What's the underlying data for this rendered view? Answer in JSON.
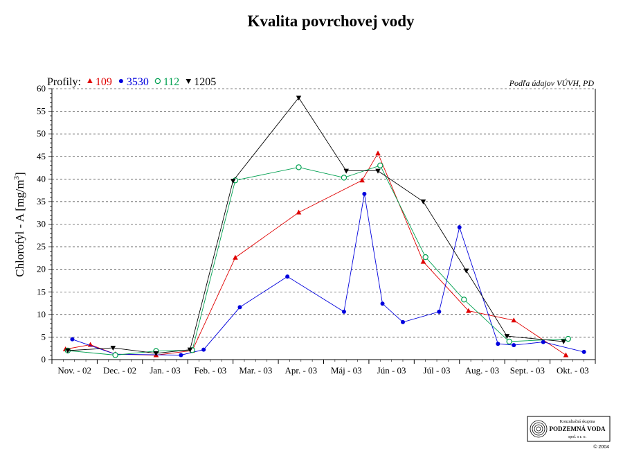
{
  "chart_data": {
    "type": "line",
    "title": "Kvalita povrchovej vody",
    "ylabel_main": "Chlorofyl - A [mg/m",
    "ylabel_sup": "3",
    "ylabel_end": "]",
    "source_note": "Podľa údajov VÚVH, PD",
    "legend_prefix": "Profily:",
    "ylim": [
      0,
      60
    ],
    "yticks": [
      "0",
      "5",
      "10",
      "15",
      "20",
      "25",
      "30",
      "35",
      "40",
      "45",
      "50",
      "55",
      "60"
    ],
    "ytick_values": [
      0,
      5,
      10,
      15,
      20,
      25,
      30,
      35,
      40,
      45,
      50,
      55,
      60
    ],
    "xlim": [
      0,
      12
    ],
    "month_labels": [
      "Nov. - 02",
      "Dec. - 02",
      "Jan. - 03",
      "Feb. - 03",
      "Mar. - 03",
      "Apr. - 03",
      "Máj - 03",
      "Jún - 03",
      "Júl - 03",
      "Aug. - 03",
      "Sept. - 03",
      "Okt. - 03"
    ],
    "grid": "horizontal-dashed",
    "series": [
      {
        "name": "109",
        "color": "#e00000",
        "marker": "triangle-up",
        "points": [
          [
            0.3,
            2.3
          ],
          [
            0.85,
            3.3
          ],
          [
            1.4,
            1.2
          ],
          [
            2.3,
            1.0
          ],
          [
            3.1,
            2.0
          ],
          [
            4.05,
            22.6
          ],
          [
            5.45,
            32.6
          ],
          [
            6.85,
            39.7
          ],
          [
            7.2,
            45.7
          ],
          [
            8.2,
            21.7
          ],
          [
            9.2,
            10.8
          ],
          [
            10.2,
            8.7
          ],
          [
            11.35,
            1.0
          ]
        ]
      },
      {
        "name": "3530",
        "color": "#0000dd",
        "marker": "circle-filled",
        "points": [
          [
            0.45,
            4.5
          ],
          [
            1.4,
            1.2
          ],
          [
            2.85,
            1.0
          ],
          [
            3.35,
            2.2
          ],
          [
            4.15,
            11.6
          ],
          [
            5.2,
            18.4
          ],
          [
            6.45,
            10.6
          ],
          [
            6.9,
            36.7
          ],
          [
            7.3,
            12.4
          ],
          [
            7.75,
            8.3
          ],
          [
            8.55,
            10.6
          ],
          [
            9.0,
            29.3
          ],
          [
            9.85,
            3.5
          ],
          [
            10.2,
            3.2
          ],
          [
            10.85,
            3.9
          ],
          [
            11.75,
            1.7
          ]
        ]
      },
      {
        "name": "112",
        "color": "#00a050",
        "marker": "circle-open",
        "points": [
          [
            0.35,
            2.0
          ],
          [
            1.4,
            1.0
          ],
          [
            2.3,
            1.9
          ],
          [
            3.1,
            2.1
          ],
          [
            4.05,
            39.7
          ],
          [
            5.45,
            42.6
          ],
          [
            6.45,
            40.3
          ],
          [
            7.25,
            43.0
          ],
          [
            8.25,
            22.7
          ],
          [
            9.1,
            13.3
          ],
          [
            10.1,
            4.0
          ],
          [
            11.4,
            4.6
          ]
        ]
      },
      {
        "name": "1205",
        "color": "#000000",
        "marker": "triangle-down",
        "points": [
          [
            0.35,
            2.0
          ],
          [
            1.35,
            2.6
          ],
          [
            2.3,
            1.4
          ],
          [
            3.05,
            2.2
          ],
          [
            4.0,
            39.6
          ],
          [
            5.45,
            58.0
          ],
          [
            6.5,
            41.8
          ],
          [
            7.2,
            41.8
          ],
          [
            8.2,
            35.0
          ],
          [
            9.15,
            19.7
          ],
          [
            10.05,
            5.2
          ],
          [
            11.3,
            4.0
          ]
        ]
      }
    ]
  },
  "logo": {
    "line1": "Konzultačná skupina",
    "line2": "PODZEMNÁ VODA",
    "line3": "spol. s r. o.",
    "copyright": "© 2004"
  }
}
